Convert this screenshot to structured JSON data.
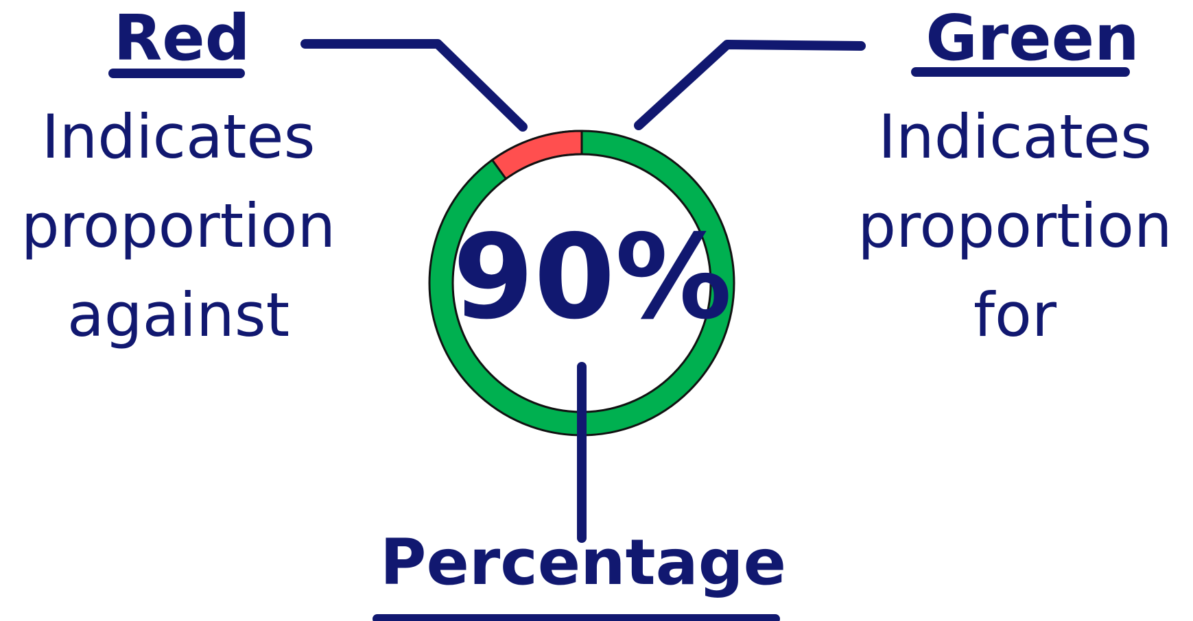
{
  "red": {
    "title": "Red",
    "lines": [
      "Indicates",
      "proportion",
      "against"
    ]
  },
  "green": {
    "title": "Green",
    "lines": [
      "Indicates",
      "proportion",
      "for"
    ]
  },
  "percentage": {
    "title": "Percentage"
  },
  "gauge": {
    "value_label": "90%",
    "for_fraction": 0.9,
    "against_fraction": 0.1,
    "colors": {
      "for": "#00b050",
      "against": "#ff4f4f",
      "ink": "#111870",
      "outline": "#111111"
    }
  }
}
